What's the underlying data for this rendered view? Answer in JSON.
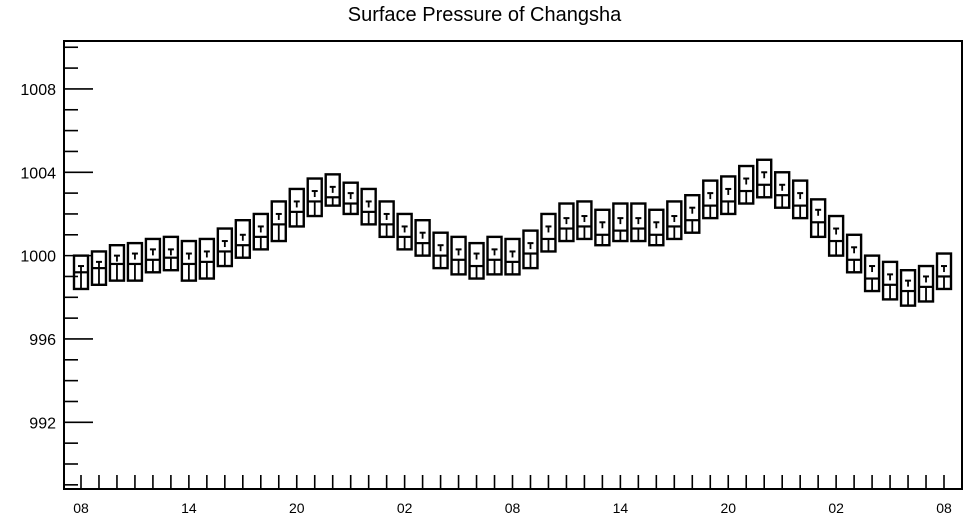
{
  "chart_data": {
    "type": "boxplot",
    "title": "Surface Pressure of Changsha",
    "xlabel": "",
    "ylabel": "",
    "ylim": [
      988.8,
      1010.3
    ],
    "y_ticks": [
      992,
      996,
      1000,
      1004,
      1008
    ],
    "y_tick_labels": [
      "992",
      "996",
      "1000",
      "1004",
      "1008"
    ],
    "x_tick_labels": [
      "08",
      "14",
      "20",
      "02",
      "08",
      "14",
      "20",
      "02",
      "08"
    ],
    "x_label_hours": [
      0,
      6,
      12,
      18,
      24,
      30,
      36,
      42,
      48
    ],
    "hours": [
      0,
      1,
      2,
      3,
      4,
      5,
      6,
      7,
      8,
      9,
      10,
      11,
      12,
      13,
      14,
      15,
      16,
      17,
      18,
      19,
      20,
      21,
      22,
      23,
      24,
      25,
      26,
      27,
      28,
      29,
      30,
      31,
      32,
      33,
      34,
      35,
      36,
      37,
      38,
      39,
      40,
      41,
      42,
      43,
      44,
      45,
      46,
      47,
      48
    ],
    "box_top": [
      1000.0,
      1000.2,
      1000.5,
      1000.6,
      1000.8,
      1000.9,
      1000.7,
      1000.8,
      1001.3,
      1001.7,
      1002.0,
      1002.6,
      1003.2,
      1003.7,
      1003.9,
      1003.5,
      1003.2,
      1002.6,
      1002.0,
      1001.7,
      1001.1,
      1000.9,
      1000.6,
      1000.9,
      1000.8,
      1001.2,
      1002.0,
      1002.5,
      1002.6,
      1002.2,
      1002.5,
      1002.5,
      1002.2,
      1002.6,
      1002.9,
      1003.6,
      1003.8,
      1004.3,
      1004.6,
      1004.0,
      1003.6,
      1002.7,
      1001.9,
      1001.0,
      1000.0,
      999.7,
      999.3,
      999.5,
      1000.1
    ],
    "mid_upper": [
      999.5,
      999.7,
      1000.0,
      1000.1,
      1000.3,
      1000.3,
      1000.1,
      1000.2,
      1000.7,
      1001.0,
      1001.4,
      1002.0,
      1002.6,
      1003.1,
      1003.3,
      1003.0,
      1002.6,
      1002.0,
      1001.4,
      1001.1,
      1000.5,
      1000.3,
      1000.1,
      1000.3,
      1000.2,
      1000.6,
      1001.4,
      1001.8,
      1001.9,
      1001.6,
      1001.8,
      1001.8,
      1001.6,
      1001.9,
      1002.3,
      1003.0,
      1003.2,
      1003.7,
      1004.0,
      1003.4,
      1003.0,
      1002.2,
      1001.3,
      1000.4,
      999.5,
      999.1,
      998.8,
      999.0,
      999.5
    ],
    "mid_lower": [
      999.2,
      999.4,
      999.6,
      999.6,
      999.8,
      999.9,
      999.6,
      999.7,
      1000.2,
      1000.5,
      1000.9,
      1001.5,
      1002.1,
      1002.6,
      1002.8,
      1002.5,
      1002.1,
      1001.5,
      1000.9,
      1000.6,
      1000.0,
      999.8,
      999.5,
      999.8,
      999.7,
      1000.1,
      1000.8,
      1001.3,
      1001.4,
      1001.0,
      1001.2,
      1001.3,
      1001.0,
      1001.4,
      1001.7,
      1002.4,
      1002.6,
      1003.1,
      1003.4,
      1002.9,
      1002.4,
      1001.6,
      1000.7,
      999.8,
      998.9,
      998.6,
      998.3,
      998.5,
      999.0
    ],
    "box_bottom": [
      998.4,
      998.6,
      998.8,
      998.8,
      999.2,
      999.3,
      998.8,
      998.9,
      999.5,
      999.9,
      1000.3,
      1000.7,
      1001.4,
      1001.9,
      1002.4,
      1002.0,
      1001.5,
      1000.9,
      1000.3,
      1000.0,
      999.4,
      999.1,
      998.9,
      999.1,
      999.1,
      999.4,
      1000.2,
      1000.7,
      1000.8,
      1000.5,
      1000.7,
      1000.7,
      1000.5,
      1000.8,
      1001.1,
      1001.8,
      1002.0,
      1002.5,
      1002.8,
      1002.3,
      1001.8,
      1000.9,
      1000.0,
      999.2,
      998.3,
      997.9,
      997.6,
      997.8,
      998.4
    ]
  }
}
